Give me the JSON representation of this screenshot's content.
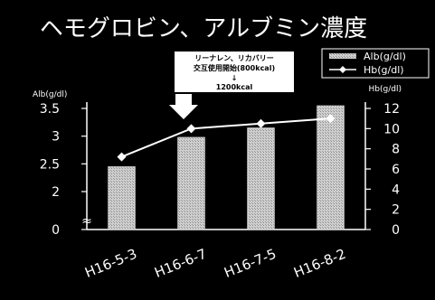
{
  "chart_data": {
    "type": "bar",
    "title": "ヘモグロビン、アルブミン濃度",
    "categories": [
      "H16-5-3",
      "H16-6-7",
      "H16-7-5",
      "H16-8-2"
    ],
    "series": [
      {
        "name": "Alb(g/dl)",
        "type": "bar",
        "axis": "left",
        "values": [
          2.45,
          2.98,
          3.15,
          3.55
        ]
      },
      {
        "name": "Hb(g/dl)",
        "type": "line",
        "axis": "right",
        "values": [
          7.2,
          10.0,
          10.5,
          11.0
        ]
      }
    ],
    "y_left": {
      "label": "Alb(g/dl)",
      "ylim": [
        0,
        3.6
      ],
      "ticks": [
        {
          "value": 0,
          "label": "0"
        },
        {
          "value": 2,
          "label": "2"
        },
        {
          "value": 2.5,
          "label": "2.5"
        },
        {
          "value": 3,
          "label": "3"
        },
        {
          "value": 3.5,
          "label": "3.5"
        }
      ],
      "axis_break": true
    },
    "y_right": {
      "label": "Hb(g/dl)",
      "ylim": [
        0,
        12
      ],
      "ticks": [
        {
          "value": 0,
          "label": "0"
        },
        {
          "value": 2,
          "label": "2"
        },
        {
          "value": 4,
          "label": "4"
        },
        {
          "value": 6,
          "label": "6"
        },
        {
          "value": 8,
          "label": "8"
        },
        {
          "value": 10,
          "label": "10"
        },
        {
          "value": 12,
          "label": "12"
        }
      ]
    },
    "annotation": {
      "lines": [
        "リーナレン、リカバリー",
        "交互使用開始(800kcal)",
        "↓",
        "1200kcal"
      ],
      "arrow_to_category": "H16-6-7"
    },
    "legend": {
      "position": "top-right",
      "entries": [
        "Alb(g/dl)",
        "Hb(g/dl)"
      ]
    },
    "grid": false,
    "colors": {
      "background": "#000000",
      "bar": "#c8c8c8",
      "line": "#ffffff",
      "text": "#ffffff"
    }
  }
}
